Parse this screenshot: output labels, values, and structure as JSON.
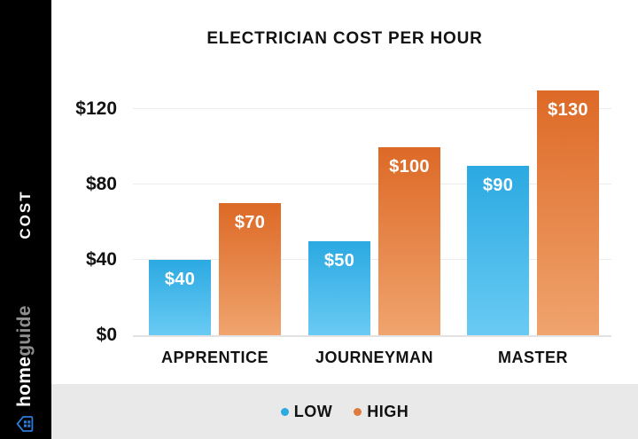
{
  "sidebar": {
    "cost_label": "COST",
    "brand_bold": "home",
    "brand_light": "guide"
  },
  "chart_data": {
    "type": "bar",
    "title": "ELECTRICIAN COST PER HOUR",
    "categories": [
      "APPRENTICE",
      "JOURNEYMAN",
      "MASTER"
    ],
    "series": [
      {
        "name": "LOW",
        "values": [
          40,
          50,
          90
        ],
        "labels": [
          "$40",
          "$50",
          "$90"
        ],
        "color_top": "#2BA9E2",
        "color_bottom": "#69CBF3",
        "legend_dot": "#2BA9E2"
      },
      {
        "name": "HIGH",
        "values": [
          70,
          100,
          130
        ],
        "labels": [
          "$70",
          "$100",
          "$130"
        ],
        "color_top": "#DD6926",
        "color_bottom": "#F0A46E",
        "legend_dot": "#DF7B3E"
      }
    ],
    "y_axis": {
      "ticks": [
        {
          "label": "$120",
          "value": 120
        },
        {
          "label": "$80",
          "value": 80
        },
        {
          "label": "$40",
          "value": 40
        },
        {
          "label": "$0",
          "value": 0
        }
      ],
      "max": 130
    },
    "ylim": [
      0,
      130
    ],
    "grid": true,
    "legend_position": "bottom"
  },
  "colors": {
    "sidebar_bg": "#000000",
    "strip_bg": "#E9E9E9",
    "grid": "#ECECEC",
    "baseline": "#E2E2E2",
    "text": "#121212",
    "brand_blue": "#2B7CD9",
    "brand_guide": "#8F8F8F"
  }
}
